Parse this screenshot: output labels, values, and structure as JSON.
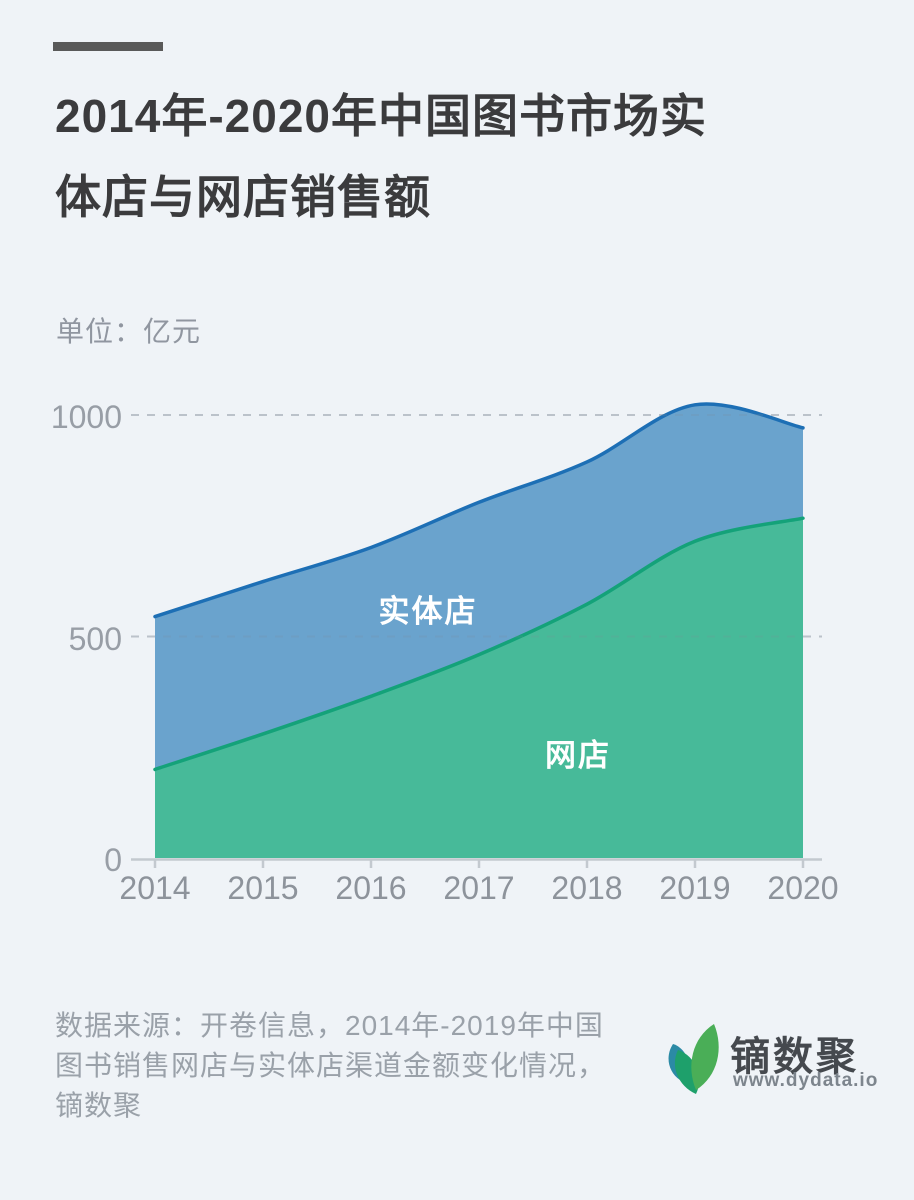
{
  "page": {
    "background_color": "#eff3f7",
    "accent_bar_color": "#595959"
  },
  "header": {
    "title": "2014年-2020年中国图书市场实体店与网店销售额",
    "title_lines": [
      "2014年-2020年中国图书市场实",
      "体店与网店销售额"
    ],
    "unit_label": "单位：亿元"
  },
  "chart_data": {
    "type": "area",
    "stacked": true,
    "title": "2014年-2020年中国图书市场实体店与网店销售额",
    "ylabel": "单位：亿元",
    "categories": [
      "2014",
      "2015",
      "2016",
      "2017",
      "2018",
      "2019",
      "2020"
    ],
    "series": [
      {
        "name": "网店",
        "values": [
          200,
          280,
          365,
          459,
          573,
          715,
          767
        ],
        "fill": "#47BA99",
        "stroke": "#14A279"
      },
      {
        "name": "实体店",
        "values": [
          345,
          344,
          336,
          344,
          321,
          308,
          204
        ],
        "fill": "#6AA3CD",
        "stroke": "#1D6FB5"
      }
    ],
    "stacked_totals": [
      545,
      624,
      701,
      803,
      894,
      1023,
      971
    ],
    "ytick_labels": [
      "0",
      "500",
      "1000"
    ],
    "ytick_values": [
      0,
      500,
      1000
    ],
    "ylim": [
      0,
      1050
    ],
    "grid": "dashed horizontal gridlines at 500 and 1000",
    "legend_position": "labels drawn inside areas",
    "grid_color": "#c9cfd6",
    "axis_color": "#c3c9cf"
  },
  "footer": {
    "source_lines": [
      "数据来源：开卷信息，2014年-2019年中国",
      "图书销售网店与实体店渠道金额变化情况，",
      "镝数聚"
    ],
    "logo": {
      "name": "镝数聚",
      "url_text": "www.dydata.io",
      "leaf_colors": [
        "#4AAE57",
        "#1EA06B",
        "#2B8AA5"
      ]
    }
  }
}
